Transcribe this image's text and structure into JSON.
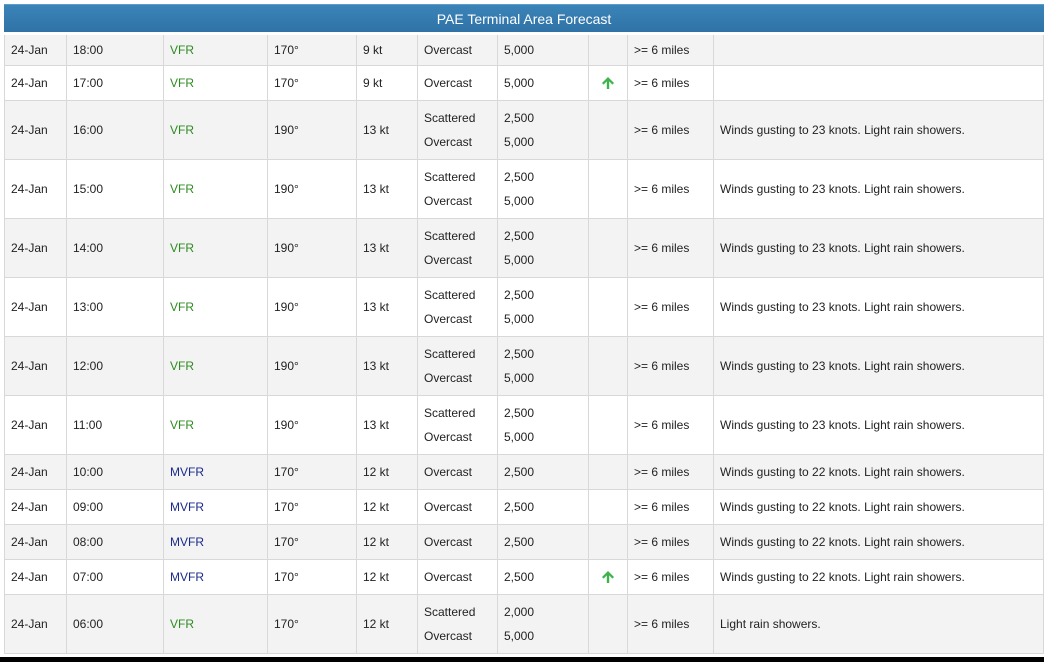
{
  "title": "PAE Terminal Area Forecast",
  "colors": {
    "vfr": "#2e8b20",
    "mvfr": "#1a2a8c",
    "arrow": "#3cb44b"
  },
  "rows": [
    {
      "date": "24-Jan",
      "time": "18:00",
      "category": "VFR",
      "wind_dir": "170°",
      "wind_speed": "9 kt",
      "clouds": [
        {
          "cover": "Overcast",
          "base": "5,000"
        }
      ],
      "trend": "",
      "visibility": ">= 6 miles",
      "remarks": ""
    },
    {
      "date": "24-Jan",
      "time": "17:00",
      "category": "VFR",
      "wind_dir": "170°",
      "wind_speed": "9 kt",
      "clouds": [
        {
          "cover": "Overcast",
          "base": "5,000"
        }
      ],
      "trend": "up-arrow-icon",
      "visibility": ">= 6 miles",
      "remarks": ""
    },
    {
      "date": "24-Jan",
      "time": "16:00",
      "category": "VFR",
      "wind_dir": "190°",
      "wind_speed": "13 kt",
      "clouds": [
        {
          "cover": "Scattered",
          "base": "2,500"
        },
        {
          "cover": "Overcast",
          "base": "5,000"
        }
      ],
      "trend": "",
      "visibility": ">= 6 miles",
      "remarks": "Winds gusting to 23 knots. Light rain showers."
    },
    {
      "date": "24-Jan",
      "time": "15:00",
      "category": "VFR",
      "wind_dir": "190°",
      "wind_speed": "13 kt",
      "clouds": [
        {
          "cover": "Scattered",
          "base": "2,500"
        },
        {
          "cover": "Overcast",
          "base": "5,000"
        }
      ],
      "trend": "",
      "visibility": ">= 6 miles",
      "remarks": "Winds gusting to 23 knots. Light rain showers."
    },
    {
      "date": "24-Jan",
      "time": "14:00",
      "category": "VFR",
      "wind_dir": "190°",
      "wind_speed": "13 kt",
      "clouds": [
        {
          "cover": "Scattered",
          "base": "2,500"
        },
        {
          "cover": "Overcast",
          "base": "5,000"
        }
      ],
      "trend": "",
      "visibility": ">= 6 miles",
      "remarks": "Winds gusting to 23 knots. Light rain showers."
    },
    {
      "date": "24-Jan",
      "time": "13:00",
      "category": "VFR",
      "wind_dir": "190°",
      "wind_speed": "13 kt",
      "clouds": [
        {
          "cover": "Scattered",
          "base": "2,500"
        },
        {
          "cover": "Overcast",
          "base": "5,000"
        }
      ],
      "trend": "",
      "visibility": ">= 6 miles",
      "remarks": "Winds gusting to 23 knots. Light rain showers."
    },
    {
      "date": "24-Jan",
      "time": "12:00",
      "category": "VFR",
      "wind_dir": "190°",
      "wind_speed": "13 kt",
      "clouds": [
        {
          "cover": "Scattered",
          "base": "2,500"
        },
        {
          "cover": "Overcast",
          "base": "5,000"
        }
      ],
      "trend": "",
      "visibility": ">= 6 miles",
      "remarks": "Winds gusting to 23 knots. Light rain showers."
    },
    {
      "date": "24-Jan",
      "time": "11:00",
      "category": "VFR",
      "wind_dir": "190°",
      "wind_speed": "13 kt",
      "clouds": [
        {
          "cover": "Scattered",
          "base": "2,500"
        },
        {
          "cover": "Overcast",
          "base": "5,000"
        }
      ],
      "trend": "",
      "visibility": ">= 6 miles",
      "remarks": "Winds gusting to 23 knots. Light rain showers."
    },
    {
      "date": "24-Jan",
      "time": "10:00",
      "category": "MVFR",
      "wind_dir": "170°",
      "wind_speed": "12 kt",
      "clouds": [
        {
          "cover": "Overcast",
          "base": "2,500"
        }
      ],
      "trend": "",
      "visibility": ">= 6 miles",
      "remarks": "Winds gusting to 22 knots. Light rain showers."
    },
    {
      "date": "24-Jan",
      "time": "09:00",
      "category": "MVFR",
      "wind_dir": "170°",
      "wind_speed": "12 kt",
      "clouds": [
        {
          "cover": "Overcast",
          "base": "2,500"
        }
      ],
      "trend": "",
      "visibility": ">= 6 miles",
      "remarks": "Winds gusting to 22 knots. Light rain showers."
    },
    {
      "date": "24-Jan",
      "time": "08:00",
      "category": "MVFR",
      "wind_dir": "170°",
      "wind_speed": "12 kt",
      "clouds": [
        {
          "cover": "Overcast",
          "base": "2,500"
        }
      ],
      "trend": "",
      "visibility": ">= 6 miles",
      "remarks": "Winds gusting to 22 knots. Light rain showers."
    },
    {
      "date": "24-Jan",
      "time": "07:00",
      "category": "MVFR",
      "wind_dir": "170°",
      "wind_speed": "12 kt",
      "clouds": [
        {
          "cover": "Overcast",
          "base": "2,500"
        }
      ],
      "trend": "up-arrow-icon",
      "visibility": ">= 6 miles",
      "remarks": "Winds gusting to 22 knots. Light rain showers."
    },
    {
      "date": "24-Jan",
      "time": "06:00",
      "category": "VFR",
      "wind_dir": "170°",
      "wind_speed": "12 kt",
      "clouds": [
        {
          "cover": "Scattered",
          "base": "2,000"
        },
        {
          "cover": "Overcast",
          "base": "5,000"
        }
      ],
      "trend": "",
      "visibility": ">= 6 miles",
      "remarks": "Light rain showers."
    }
  ]
}
